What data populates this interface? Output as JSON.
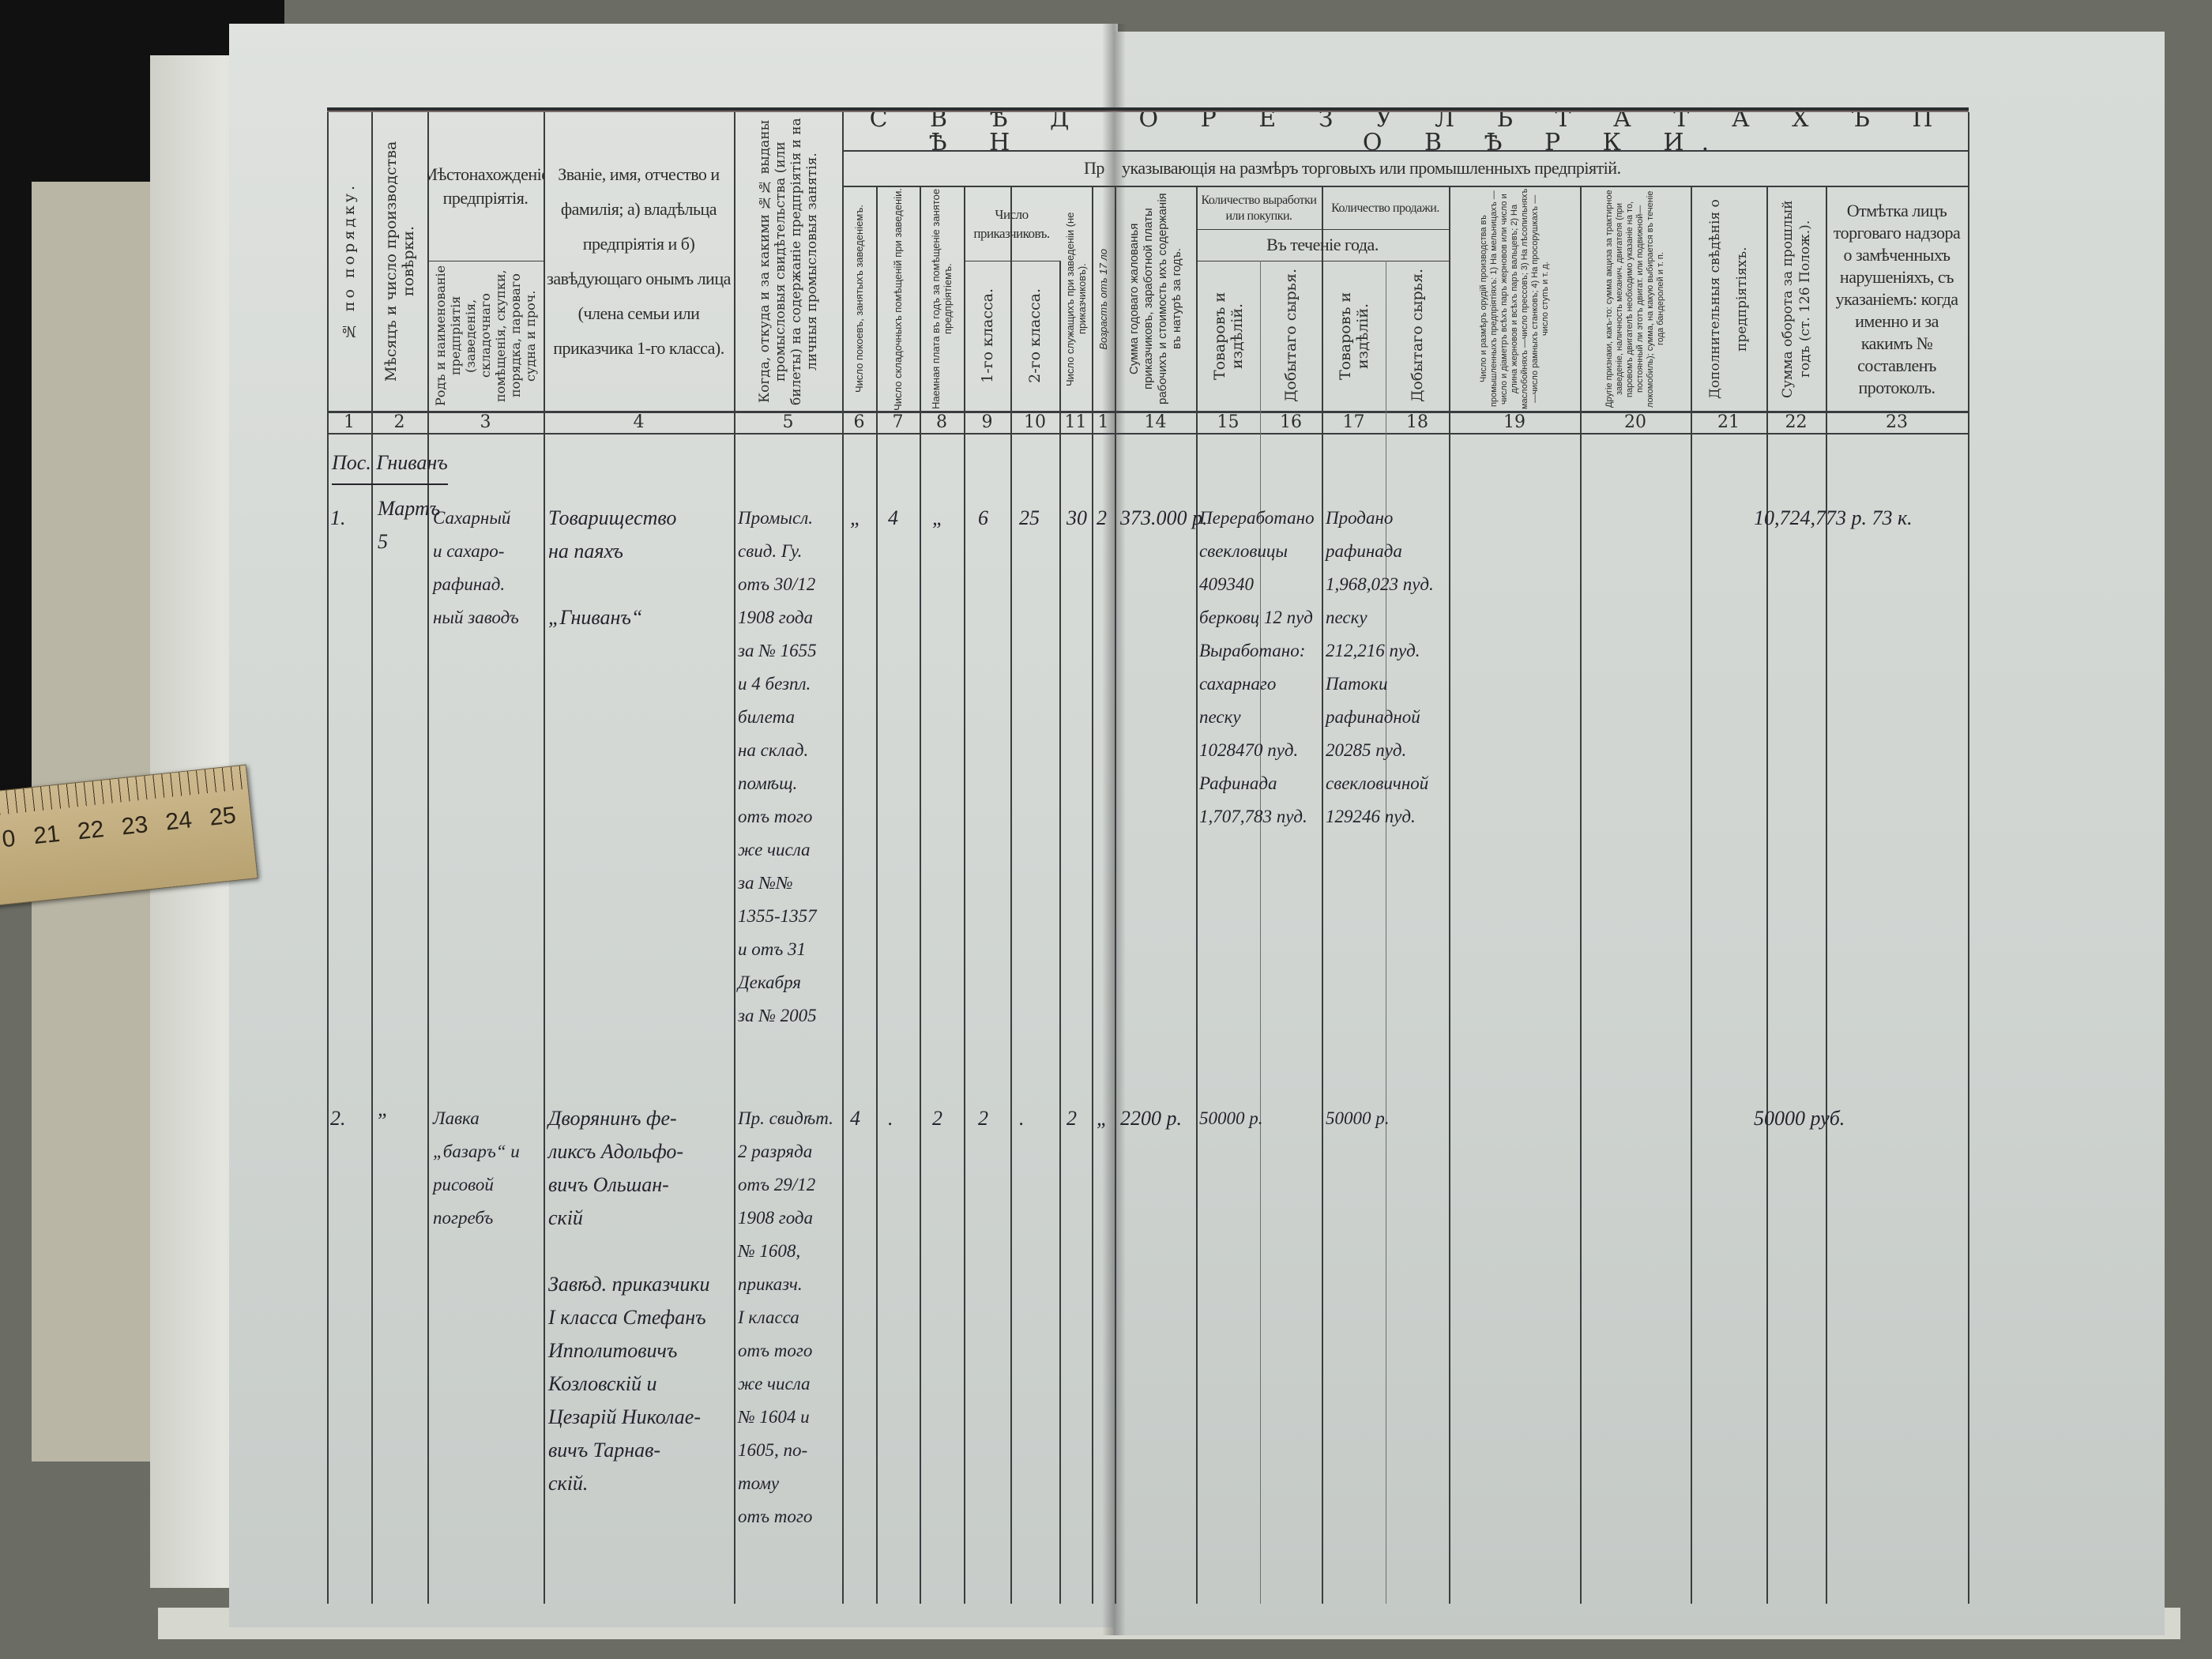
{
  "ruler": {
    "numbers": [
      "0",
      "21",
      "22",
      "23",
      "24",
      "25"
    ]
  },
  "header": {
    "banner_left": "С В Ѣ Д Ѣ Н",
    "banner_right": "О   Р Е З У Л Ь Т А Т А Х Ъ     П О В Ѣ Р К И.",
    "subbanner_left": "Пр",
    "subbanner_right": "указывающія на размѣръ торговыхъ или промышленныхъ предпріятій.",
    "columns": {
      "c1": "№ по порядку.",
      "c2": "Мѣсяцъ и число производства повѣрки.",
      "c3_top": "Мѣстонахожденіе предпріятія.",
      "c3": "Родъ и наименованіе предпріятія (заведенія, складочнаго помѣщенія, скупки, порядка, пароваго судна и проч.",
      "c4": "Званіе, имя, отчество и фамилія; а) владѣльца предпріятія и б) завѣдующаго онымъ лица (члена семьи или приказчика 1-го класса).",
      "c5": "Когда, откуда и за какими №№ выданы промысловыя свидѣтельства (или билеты) на содержаніе предпріятія и на личныя промысловыя занятія.",
      "c6": "Число покоевъ, занятыхъ заведеніемъ.",
      "c7": "Число складочныхъ помѣщеній при заведеніи.",
      "c8": "Наемная плата въ годъ за помѣщеніе занятое предпріятіемъ.",
      "c9_10_group": "Число приказчиковъ.",
      "c9": "1-го класса.",
      "c10": "2-го класса.",
      "c11": "Число служащихъ при заведеніи (не приказчиковъ).",
      "c12": "Возрастъ отъ 17 ло",
      "c14": "Сумма годоваго жалованья приказчиковъ, заработной платы рабочихъ и стоимость ихъ содержанія въ натурѣ за годъ.",
      "g_production": "Количество выработки или покупки.",
      "g_sales": "Количество продажи.",
      "g_year": "Въ теченіе года.",
      "c15": "Товаровъ и издѣлій.",
      "c16": "Добытаго сырья.",
      "c17": "Товаровъ и издѣлій.",
      "c18": "Добытаго сырья.",
      "c19": "Число и размѣръ орудій производства въ промышленныхъ предпріятіяхъ: 1) На мельницахъ —число и діаметръ всѣхъ паръ жерновов или число и длина жерновов и всѣхъ паръ вальцевъ; 2) На маслобойняхъ —число прессовъ; 3) На лѣсопильняхъ —число рамныхъ станковъ; 4) На просорушкахъ —число ступъ и т. д.",
      "c20": "Другіе признаки, какъ-то: сумма акциза за трактирное заведеніе, наличность механич. двигателя (при паровомъ двигателѣ необходимо указаніе на то, постоянный ли этотъ двигат. или подвижной—локомобиль); сумма, на какую выбирается въ теченіе года бандеролей и т. п.",
      "c21": "Дополнительныя свѣдѣнія о предпріятіяхъ.",
      "c22": "Сумма оборота за прошлый годъ (ст. 126 Полож.).",
      "c23": "Отмѣтка лицъ торговаго надзора о замѣченныхъ нарушеніяхъ, съ указаніемъ: когда именно и за какимъ № составленъ протоколъ."
    },
    "column_numbers": [
      "1",
      "2",
      "3",
      "4",
      "5",
      "6",
      "7",
      "8",
      "9",
      "10",
      "11",
      "1",
      "14",
      "15",
      "16",
      "17",
      "18",
      "19",
      "20",
      "21",
      "22",
      "23"
    ]
  },
  "section_heading": "Пос. Гниванъ",
  "entries": [
    {
      "no": [
        "1."
      ],
      "date": [
        "Мартъ",
        "5"
      ],
      "kind": [
        "Сахарный",
        "и сахаро-",
        "рафинад.",
        "ный заводъ"
      ],
      "owner": [
        "Товарищество",
        "на паяхъ",
        "",
        "„Гниванъ“"
      ],
      "certificates": [
        "Промысл.",
        "свид. Гу.",
        "отъ 30/12",
        "1908 года",
        "за № 1655",
        "и 4 безпл.",
        "билета",
        "на склад.",
        "помѣщ.",
        "отъ того",
        "же числа",
        "за №№",
        "1355-1357",
        "и отъ 31",
        "Декабря",
        "за № 2005"
      ],
      "c6": [
        "„"
      ],
      "c7": [
        "4"
      ],
      "c8": [
        "„"
      ],
      "c9": [
        "6"
      ],
      "c10": [
        "25"
      ],
      "c11": [
        "30"
      ],
      "c12": [
        "2"
      ],
      "c14": [
        "373.000 р."
      ],
      "c15": [
        "Переработано",
        "свекловицы",
        "409340",
        "берковц 12 пуд",
        "Выработано:",
        "сахарнаго",
        "песку",
        "1028470 пуд.",
        "Рафинада",
        "1,707,783 пуд."
      ],
      "c17": [
        "Продано",
        "рафинада",
        "1,968,023 пуд.",
        "песку",
        "212,216 пуд.",
        "Патоки",
        "рафинадной",
        "20285 пуд.",
        "свекловичной",
        "129246 пуд."
      ],
      "c22": [
        "10,724,773 р. 73 к."
      ]
    },
    {
      "no": [
        "2."
      ],
      "date": [
        "„"
      ],
      "kind": [
        "Лавка",
        "„базаръ“ и",
        "рисовой",
        "погребъ"
      ],
      "owner": [
        "Дворянинъ фе-",
        "ликсъ Адольфо-",
        "вичъ Ольшан-",
        "скій",
        "",
        "Завѣд. приказчики",
        "I класса Стефанъ",
        "Ипполитовичъ",
        "Козловскій и",
        "Цезарій Николае-",
        "вичъ Тарнав-",
        "скій."
      ],
      "certificates": [
        "Пр. свидѣт.",
        "2 разряда",
        "отъ 29/12",
        "1908 года",
        "№ 1608,",
        "приказч.",
        "I класса",
        "отъ того",
        "же числа",
        "№ 1604 и",
        "1605, по-",
        "тому",
        "отъ того"
      ],
      "c6": [
        "4"
      ],
      "c7": [
        "."
      ],
      "c8": [
        "2"
      ],
      "c9": [
        "2"
      ],
      "c10": [
        "."
      ],
      "c11": [
        "2"
      ],
      "c12": [
        "„"
      ],
      "c14": [
        "2200 р."
      ],
      "c15": [
        "50000 р."
      ],
      "c17": [
        "50000 р."
      ],
      "c22": [
        "50000 руб."
      ]
    }
  ],
  "colors": {
    "paper": "#d3d7d4",
    "ink": "#23242c",
    "print": "#2b2d2e",
    "table": "#6b6c64"
  }
}
